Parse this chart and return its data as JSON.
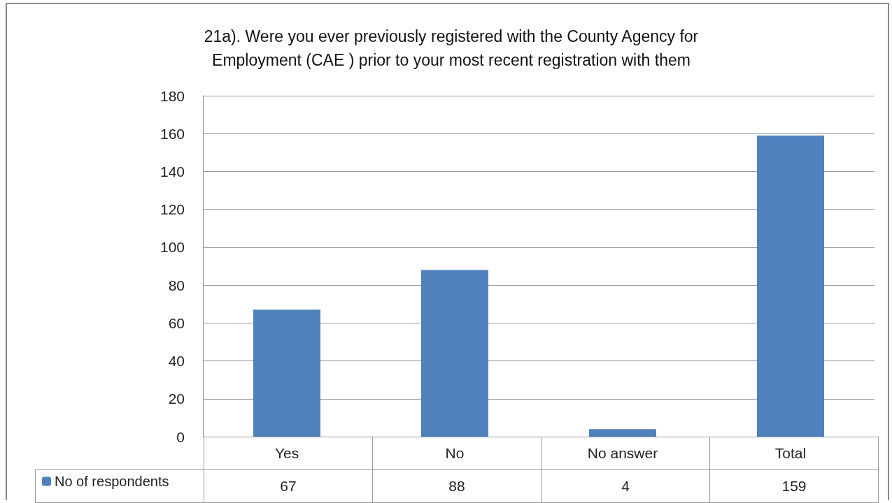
{
  "chart_data": {
    "type": "bar",
    "title": "21a). Were you ever previously registered with the County Agency for\nEmployment (CAE ) prior to your most recent registration with them",
    "categories": [
      "Yes",
      "No",
      "No answer",
      "Total"
    ],
    "series": [
      {
        "name": "No of respondents",
        "color": "#4f81bd",
        "values": [
          67,
          88,
          4,
          159
        ]
      }
    ],
    "ylim": [
      0,
      180
    ],
    "yticks": [
      0,
      20,
      40,
      60,
      80,
      100,
      120,
      140,
      160,
      180
    ],
    "grid": "y",
    "legend": "bottom left",
    "data_labels": true
  }
}
